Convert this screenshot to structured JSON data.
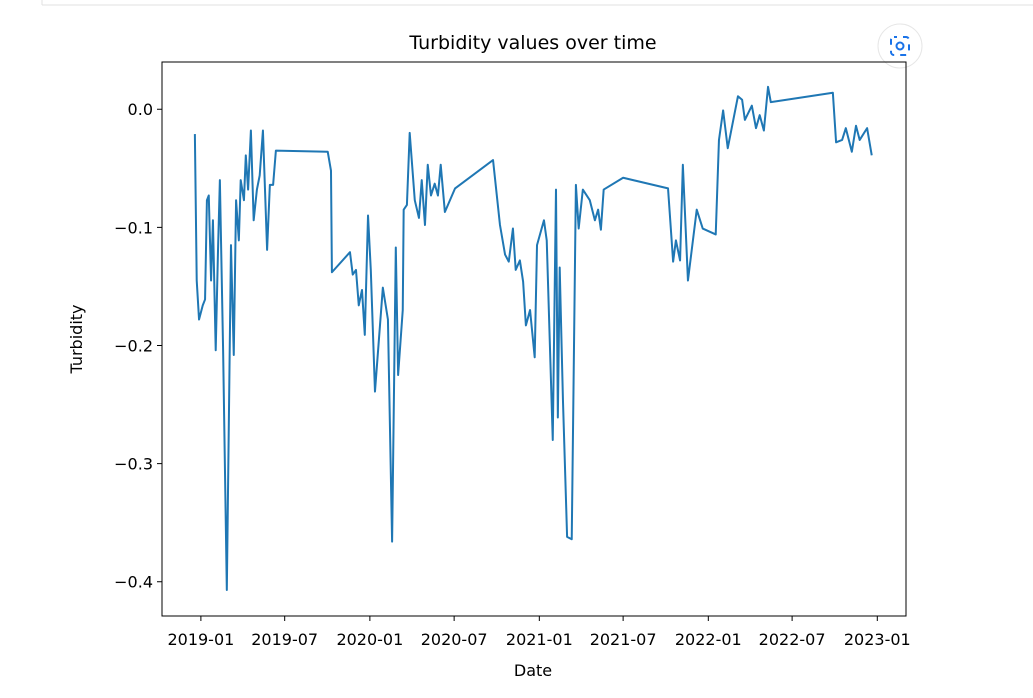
{
  "chart_data": {
    "type": "line",
    "title": "Turbidity values over time",
    "xlabel": "Date",
    "ylabel": "Turbidity",
    "x": [
      "2018-12-19",
      "2018-12-23",
      "2018-12-28",
      "2019-01-05",
      "2019-01-10",
      "2019-01-14",
      "2019-01-18",
      "2019-01-23",
      "2019-01-27",
      "2019-02-02",
      "2019-02-07",
      "2019-02-11",
      "2019-02-18",
      "2019-02-26",
      "2019-03-07",
      "2019-03-13",
      "2019-03-18",
      "2019-03-24",
      "2019-03-28",
      "2019-04-04",
      "2019-04-08",
      "2019-04-13",
      "2019-04-19",
      "2019-04-25",
      "2019-05-02",
      "2019-05-08",
      "2019-05-15",
      "2019-05-24",
      "2019-05-30",
      "2019-06-06",
      "2019-06-12",
      "2019-10-02",
      "2019-10-09",
      "2019-10-11",
      "2019-11-19",
      "2019-11-25",
      "2019-12-02",
      "2019-12-08",
      "2019-12-15",
      "2019-12-21",
      "2019-12-28",
      "2020-01-03",
      "2020-01-12",
      "2020-01-29",
      "2020-02-09",
      "2020-02-18",
      "2020-02-26",
      "2020-03-02",
      "2020-03-12",
      "2020-03-14",
      "2020-03-21",
      "2020-03-27",
      "2020-04-07",
      "2020-04-16",
      "2020-04-22",
      "2020-04-29",
      "2020-05-05",
      "2020-05-12",
      "2020-05-20",
      "2020-05-27",
      "2020-06-02",
      "2020-06-11",
      "2020-07-03",
      "2020-09-23",
      "2020-10-08",
      "2020-10-19",
      "2020-10-27",
      "2020-11-05",
      "2020-11-11",
      "2020-11-20",
      "2020-11-27",
      "2020-12-03",
      "2020-12-12",
      "2020-12-22",
      "2020-12-27",
      "2021-01-11",
      "2021-01-17",
      "2021-01-30",
      "2021-02-06",
      "2021-02-10",
      "2021-02-14",
      "2021-02-21",
      "2021-03-02",
      "2021-03-12",
      "2021-03-21",
      "2021-03-27",
      "2021-04-05",
      "2021-04-20",
      "2021-05-01",
      "2021-05-08",
      "2021-05-14",
      "2021-05-20",
      "2021-07-01",
      "2021-10-06",
      "2021-10-17",
      "2021-10-23",
      "2021-11-01",
      "2021-11-07",
      "2021-11-18",
      "2021-12-07",
      "2021-12-20",
      "2022-01-17",
      "2022-01-24",
      "2022-02-02",
      "2022-02-12",
      "2022-03-06",
      "2022-03-15",
      "2022-03-21",
      "2022-04-05",
      "2022-04-14",
      "2022-04-22",
      "2022-05-01",
      "2022-05-10",
      "2022-05-16",
      "2022-09-27",
      "2022-10-04",
      "2022-10-17",
      "2022-10-25",
      "2022-11-07",
      "2022-11-16",
      "2022-11-24",
      "2022-12-10",
      "2022-12-20"
    ],
    "series": [
      {
        "name": "Turbidity",
        "color": "#1f77b4",
        "values": [
          -0.021,
          -0.145,
          -0.178,
          -0.166,
          -0.161,
          -0.077,
          -0.073,
          -0.145,
          -0.094,
          -0.204,
          -0.119,
          -0.06,
          -0.204,
          -0.407,
          -0.115,
          -0.208,
          -0.077,
          -0.111,
          -0.06,
          -0.077,
          -0.039,
          -0.068,
          -0.018,
          -0.094,
          -0.068,
          -0.056,
          -0.018,
          -0.119,
          -0.064,
          -0.064,
          -0.035,
          -0.036,
          -0.052,
          -0.138,
          -0.121,
          -0.14,
          -0.136,
          -0.166,
          -0.153,
          -0.191,
          -0.09,
          -0.136,
          -0.239,
          -0.151,
          -0.178,
          -0.366,
          -0.117,
          -0.225,
          -0.17,
          -0.085,
          -0.081,
          -0.02,
          -0.077,
          -0.092,
          -0.06,
          -0.098,
          -0.047,
          -0.073,
          -0.063,
          -0.073,
          -0.047,
          -0.087,
          -0.067,
          -0.043,
          -0.098,
          -0.123,
          -0.129,
          -0.101,
          -0.136,
          -0.128,
          -0.146,
          -0.183,
          -0.17,
          -0.21,
          -0.115,
          -0.094,
          -0.111,
          -0.28,
          -0.068,
          -0.261,
          -0.134,
          -0.246,
          -0.362,
          -0.364,
          -0.064,
          -0.101,
          -0.068,
          -0.077,
          -0.094,
          -0.085,
          -0.102,
          -0.068,
          -0.058,
          -0.067,
          -0.129,
          -0.111,
          -0.128,
          -0.047,
          -0.145,
          -0.085,
          -0.101,
          -0.106,
          -0.026,
          -0.001,
          -0.033,
          0.011,
          0.008,
          -0.009,
          0.003,
          -0.016,
          -0.005,
          -0.018,
          0.019,
          0.006,
          0.014,
          -0.028,
          -0.026,
          -0.016,
          -0.036,
          -0.014,
          -0.026,
          -0.016,
          -0.039
        ]
      }
    ],
    "xlim": [
      "2018-10-09",
      "2023-03-04"
    ],
    "xticks": [
      "2019-01",
      "2019-07",
      "2020-01",
      "2020-07",
      "2021-01",
      "2021-07",
      "2022-01",
      "2022-07",
      "2023-01"
    ],
    "ylim": [
      -0.429,
      0.04
    ],
    "yticks": [
      {
        "value": -0.4,
        "label": "−0.4"
      },
      {
        "value": -0.3,
        "label": "−0.3"
      },
      {
        "value": -0.2,
        "label": "−0.2"
      },
      {
        "value": -0.1,
        "label": "−0.1"
      },
      {
        "value": 0,
        "label": "0.0"
      }
    ],
    "grid": false
  }
}
